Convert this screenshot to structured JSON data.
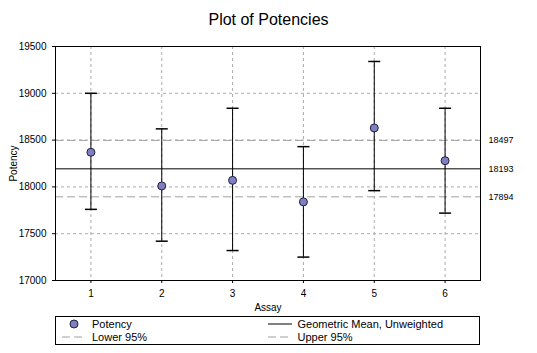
{
  "chart_data": {
    "type": "scatter",
    "title": "Plot of Potencies",
    "x_label": "Assay",
    "y_label": "Potency",
    "x": [
      1,
      2,
      3,
      4,
      5,
      6
    ],
    "xlim": [
      0.5,
      6.5
    ],
    "xticks": [
      1,
      2,
      3,
      4,
      5,
      6
    ],
    "ylim": [
      17000,
      19500
    ],
    "yticks": [
      17000,
      17500,
      18000,
      18500,
      19000,
      19500
    ],
    "grid": true,
    "series": [
      {
        "name": "Potency",
        "color": "#7f80c2",
        "marker": "circle",
        "values": [
          18370,
          18010,
          18070,
          17840,
          18630,
          18280
        ],
        "error_low": [
          17760,
          17420,
          17320,
          17250,
          17960,
          17720
        ],
        "error_high": [
          19000,
          18620,
          18840,
          18430,
          19340,
          18840
        ]
      }
    ],
    "reference_lines": [
      {
        "name": "Geometric Mean, Unweighted",
        "value": 18193,
        "color": "#000000",
        "line_style": "solid"
      },
      {
        "name": "Lower 95%",
        "value": 17894,
        "color": "#a0a0a0",
        "line_style": "dashed"
      },
      {
        "name": "Upper 95%",
        "value": 18497,
        "color": "#a0a0a0",
        "line_style": "dashed"
      }
    ]
  }
}
